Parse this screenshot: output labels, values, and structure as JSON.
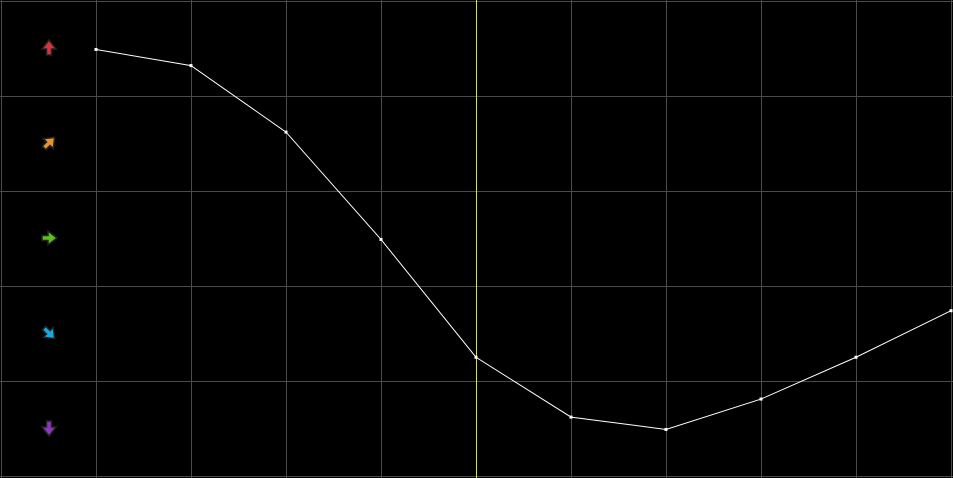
{
  "colors": {
    "background": "#000000",
    "grid": "#4a4a4a",
    "line": "#ffffff",
    "marker_line": "#d8d870"
  },
  "direction_icons": [
    {
      "name": "arrow-up-icon",
      "color": "#d8343e",
      "angle": 0
    },
    {
      "name": "arrow-up-right-icon",
      "color": "#e8952c",
      "angle": 45
    },
    {
      "name": "arrow-right-icon",
      "color": "#5cc01c",
      "angle": 90
    },
    {
      "name": "arrow-down-right-icon",
      "color": "#1aa8e0",
      "angle": 135
    },
    {
      "name": "arrow-down-icon",
      "color": "#8a3ab8",
      "angle": 180
    }
  ],
  "chart_data": {
    "type": "line",
    "x": [
      0,
      1,
      2,
      3,
      4,
      5,
      6,
      7,
      8,
      9
    ],
    "values": [
      4.49,
      4.32,
      3.62,
      2.49,
      1.25,
      0.62,
      0.49,
      0.81,
      1.25,
      1.74
    ],
    "xlim": [
      -1,
      9
    ],
    "ylim": [
      0,
      5
    ],
    "grid": true,
    "highlight_x": 4
  }
}
